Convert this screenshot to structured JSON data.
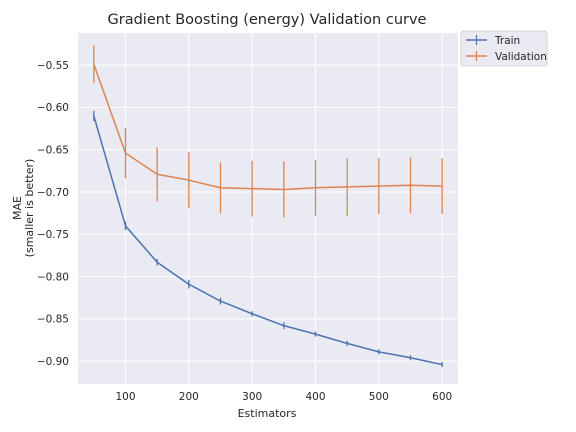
{
  "chart_data": {
    "type": "line",
    "title": "Gradient Boosting (energy) Validation curve",
    "xlabel": "Estimators",
    "ylabel": [
      "MAE",
      "(smaller is better)"
    ],
    "xlim": [
      25,
      625
    ],
    "ylim": [
      -0.927,
      -0.512
    ],
    "xticks": [
      100,
      200,
      300,
      400,
      500,
      600
    ],
    "yticks": [
      -0.55,
      -0.6,
      -0.65,
      -0.7,
      -0.75,
      -0.8,
      -0.85,
      -0.9
    ],
    "grid": true,
    "legend_position": "outside-top-right",
    "x": [
      50,
      100,
      150,
      200,
      250,
      300,
      350,
      400,
      450,
      500,
      550,
      600
    ],
    "series": [
      {
        "name": "Train",
        "color": "#4c72b0",
        "values": [
          -0.61,
          -0.74,
          -0.783,
          -0.809,
          -0.829,
          -0.844,
          -0.858,
          -0.868,
          -0.879,
          -0.889,
          -0.896,
          -0.904
        ],
        "errors": [
          0.006,
          0.005,
          0.004,
          0.005,
          0.004,
          0.003,
          0.004,
          0.003,
          0.003,
          0.003,
          0.003,
          0.003
        ]
      },
      {
        "name": "Validation",
        "color": "#dd8452",
        "values": [
          -0.549,
          -0.654,
          -0.679,
          -0.686,
          -0.695,
          -0.696,
          -0.697,
          -0.695,
          -0.694,
          -0.693,
          -0.692,
          -0.693
        ],
        "errors": [
          0.022,
          0.03,
          0.032,
          0.033,
          0.03,
          0.033,
          0.033,
          0.033,
          0.034,
          0.033,
          0.033,
          0.033
        ]
      }
    ]
  }
}
